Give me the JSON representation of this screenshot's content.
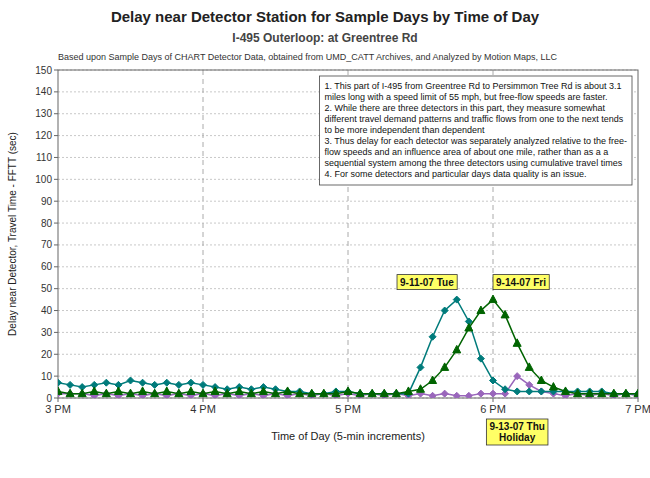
{
  "chart_data": {
    "type": "line",
    "title": "Delay near Detector Station for Sample Days by Time of Day",
    "subtitle": "I-495 Outerloop: at Greentree Rd",
    "source": "Based upon Sample Days of CHART Detector Data, obtained from UMD_CATT Archives, and Analyzed by Motion Maps, LLC",
    "x_label": "Time of Day (5-min increments)",
    "y_label": "Delay near Detector, Travel Time - FFTT (sec)",
    "annotations": [
      "1. This part of I-495 from Greentree Rd to Persimmon Tree Rd is about 3.1\nmiles long with a speed limit of 55 mph, but free-flow speeds are faster.\n2. While there are three detectors in this part, they measure somewhat\ndifferent travel demand patterns and traffic flows from one to the next tends\nto be more independent than dependent\n3. Thus delay for each detector was separately analyzed relative to the free-\nflow speeds and an influence area of about one mile, rather than as a a\nsequential system among the three detectors using cumulative travel times\n4. For some detectors and particular days data quality is an issue."
    ],
    "x": [
      15,
      15.083333333333334,
      15.166666666666666,
      15.25,
      15.333333333333334,
      15.416666666666666,
      15.5,
      15.583333333333334,
      15.666666666666666,
      15.75,
      15.833333333333334,
      15.916666666666666,
      16,
      16.083333333333332,
      16.166666666666668,
      16.25,
      16.333333333333332,
      16.416666666666668,
      16.5,
      16.583333333333332,
      16.666666666666668,
      16.75,
      16.833333333333332,
      16.916666666666668,
      17,
      17.083333333333332,
      17.166666666666668,
      17.25,
      17.333333333333332,
      17.416666666666668,
      17.5,
      17.583333333333332,
      17.666666666666668,
      17.75,
      17.833333333333332,
      17.916666666666668,
      18,
      18.083333333333332,
      18.166666666666668,
      18.25,
      18.333333333333332,
      18.416666666666668,
      18.5,
      18.583333333333332,
      18.666666666666668,
      18.75,
      18.833333333333332,
      18.916666666666668,
      19
    ],
    "series": [
      {
        "name": "9-13-07 Thu\nHoliday",
        "color": "#9966bb",
        "marker": "diamond",
        "values": [
          2,
          2,
          2,
          1,
          2,
          1,
          2,
          1,
          2,
          1,
          2,
          1,
          2,
          1,
          2,
          1,
          2,
          1,
          2,
          1,
          2,
          1,
          2,
          1,
          2,
          1,
          2,
          1,
          2,
          1,
          2,
          1,
          2,
          1,
          1,
          2,
          2,
          2,
          10,
          6,
          3,
          2,
          1,
          2,
          1,
          2,
          1,
          2,
          1
        ]
      },
      {
        "name": "9-11-07 Tue",
        "color": "#007b7b",
        "marker": "diamond",
        "values": [
          7,
          6,
          5,
          6,
          7,
          6,
          8,
          7,
          6,
          7,
          6,
          7,
          6,
          5,
          4,
          5,
          4,
          5,
          4,
          3,
          3,
          2,
          2,
          3,
          3,
          2,
          2,
          2,
          2,
          2,
          14,
          28,
          40,
          45,
          35,
          18,
          8,
          4,
          3,
          3,
          3,
          3,
          3,
          3,
          3,
          3,
          2,
          2,
          2
        ]
      },
      {
        "name": "9-14-07 Fri",
        "color": "#006400",
        "marker": "triangle",
        "values": [
          3,
          2,
          2,
          3,
          2,
          3,
          2,
          3,
          2,
          3,
          2,
          3,
          2,
          3,
          2,
          3,
          2,
          3,
          2,
          3,
          2,
          2,
          2,
          2,
          3,
          2,
          2,
          2,
          2,
          3,
          4,
          8,
          14,
          22,
          32,
          40,
          45,
          38,
          25,
          14,
          8,
          5,
          3,
          2,
          2,
          2,
          2,
          2,
          2
        ]
      }
    ],
    "xlim": [
      15,
      19
    ],
    "xticks": [
      {
        "value": 15,
        "label": "3 PM"
      },
      {
        "value": 16,
        "label": "4 PM"
      },
      {
        "value": 17,
        "label": "5 PM"
      },
      {
        "value": 18,
        "label": "6 PM"
      },
      {
        "value": 19,
        "label": "7 PM"
      }
    ],
    "ylim": [
      0,
      150
    ],
    "yticks": [
      0,
      10,
      20,
      30,
      40,
      50,
      60,
      70,
      80,
      90,
      100,
      110,
      120,
      130,
      140,
      150
    ],
    "grid": true
  }
}
